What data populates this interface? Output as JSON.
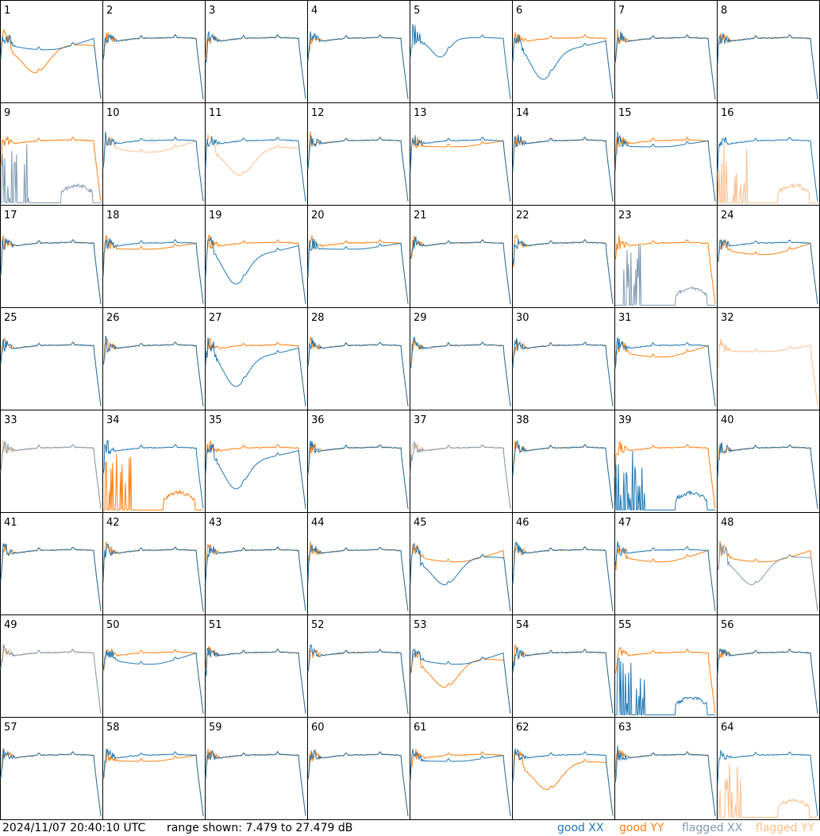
{
  "footer": {
    "timestamp": "2024/11/07 20:40:10 UTC",
    "range_text": "range shown: 7.479 to 27.479 dB"
  },
  "legend": [
    {
      "label": "good XX",
      "color": "#1f77b4"
    },
    {
      "label": "good YY",
      "color": "#ff7f0e"
    },
    {
      "label": "flagged XX",
      "color": "#7f9ab3"
    },
    {
      "label": "flagged YY",
      "color": "#ffbd8a"
    }
  ],
  "chart_data": {
    "type": "line",
    "title": "",
    "xlabel": "",
    "ylabel": "",
    "ylim": [
      7.479,
      27.479
    ],
    "grid": "8x8 small multiples",
    "panels": [
      {
        "id": "1",
        "xx": "good",
        "yy": "good",
        "xx_shape": "dip",
        "yy_shape": "deepdip"
      },
      {
        "id": "2",
        "xx": "good",
        "yy": "good",
        "xx_shape": "normal",
        "yy_shape": "normal"
      },
      {
        "id": "3",
        "xx": "good",
        "yy": "good",
        "xx_shape": "normal",
        "yy_shape": "normal"
      },
      {
        "id": "4",
        "xx": "good",
        "yy": "good",
        "xx_shape": "normal",
        "yy_shape": "normal"
      },
      {
        "id": "5",
        "xx": "good",
        "yy": "none",
        "xx_shape": "bowl",
        "yy_shape": "none"
      },
      {
        "id": "6",
        "xx": "good",
        "yy": "good",
        "xx_shape": "deepbowl",
        "yy_shape": "normal"
      },
      {
        "id": "7",
        "xx": "good",
        "yy": "good",
        "xx_shape": "normal",
        "yy_shape": "normal"
      },
      {
        "id": "8",
        "xx": "good",
        "yy": "good",
        "xx_shape": "normal",
        "yy_shape": "normal"
      },
      {
        "id": "9",
        "xx": "flagged",
        "yy": "good",
        "xx_shape": "spikes",
        "yy_shape": "normal"
      },
      {
        "id": "10",
        "xx": "good",
        "yy": "flagged",
        "xx_shape": "normal",
        "yy_shape": "dip"
      },
      {
        "id": "11",
        "xx": "good",
        "yy": "flagged",
        "xx_shape": "normal",
        "yy_shape": "deepdip"
      },
      {
        "id": "12",
        "xx": "good",
        "yy": "good",
        "xx_shape": "normal",
        "yy_shape": "normal"
      },
      {
        "id": "13",
        "xx": "good",
        "yy": "good",
        "xx_shape": "normal",
        "yy_shape": "low"
      },
      {
        "id": "14",
        "xx": "good",
        "yy": "good",
        "xx_shape": "normal",
        "yy_shape": "normal"
      },
      {
        "id": "15",
        "xx": "good",
        "yy": "good",
        "xx_shape": "low",
        "yy_shape": "normal"
      },
      {
        "id": "16",
        "xx": "good",
        "yy": "flagged",
        "xx_shape": "normal",
        "yy_shape": "spikes"
      },
      {
        "id": "17",
        "xx": "good",
        "yy": "good",
        "xx_shape": "normal",
        "yy_shape": "normal"
      },
      {
        "id": "18",
        "xx": "good",
        "yy": "good",
        "xx_shape": "normal",
        "yy_shape": "low"
      },
      {
        "id": "19",
        "xx": "good",
        "yy": "good",
        "xx_shape": "deepbowl",
        "yy_shape": "normal"
      },
      {
        "id": "20",
        "xx": "good",
        "yy": "good",
        "xx_shape": "low",
        "yy_shape": "normal"
      },
      {
        "id": "21",
        "xx": "good",
        "yy": "good",
        "xx_shape": "normal",
        "yy_shape": "normal"
      },
      {
        "id": "22",
        "xx": "good",
        "yy": "good",
        "xx_shape": "normal",
        "yy_shape": "normal"
      },
      {
        "id": "23",
        "xx": "flagged",
        "yy": "good",
        "xx_shape": "spikes",
        "yy_shape": "normal"
      },
      {
        "id": "24",
        "xx": "good",
        "yy": "good",
        "xx_shape": "normal",
        "yy_shape": "dip"
      },
      {
        "id": "25",
        "xx": "good",
        "yy": "good",
        "xx_shape": "normal",
        "yy_shape": "normal"
      },
      {
        "id": "26",
        "xx": "good",
        "yy": "good",
        "xx_shape": "normal",
        "yy_shape": "normal"
      },
      {
        "id": "27",
        "xx": "good",
        "yy": "good",
        "xx_shape": "deepbowl",
        "yy_shape": "normal"
      },
      {
        "id": "28",
        "xx": "good",
        "yy": "good",
        "xx_shape": "normal",
        "yy_shape": "normal"
      },
      {
        "id": "29",
        "xx": "good",
        "yy": "good",
        "xx_shape": "normal",
        "yy_shape": "normal"
      },
      {
        "id": "30",
        "xx": "good",
        "yy": "good",
        "xx_shape": "normal",
        "yy_shape": "normal"
      },
      {
        "id": "31",
        "xx": "good",
        "yy": "good",
        "xx_shape": "normal",
        "yy_shape": "dip"
      },
      {
        "id": "32",
        "xx": "none",
        "yy": "flagged",
        "xx_shape": "none",
        "yy_shape": "low"
      },
      {
        "id": "33",
        "xx": "flagged",
        "yy": "flagged",
        "xx_shape": "normal",
        "yy_shape": "normal"
      },
      {
        "id": "34",
        "xx": "good",
        "yy": "good",
        "xx_shape": "normal",
        "yy_shape": "spikes"
      },
      {
        "id": "35",
        "xx": "good",
        "yy": "good",
        "xx_shape": "deepbowl",
        "yy_shape": "normal"
      },
      {
        "id": "36",
        "xx": "good",
        "yy": "good",
        "xx_shape": "normal",
        "yy_shape": "normal"
      },
      {
        "id": "37",
        "xx": "flagged",
        "yy": "flagged",
        "xx_shape": "normal",
        "yy_shape": "normal"
      },
      {
        "id": "38",
        "xx": "good",
        "yy": "good",
        "xx_shape": "normal",
        "yy_shape": "normal"
      },
      {
        "id": "39",
        "xx": "good",
        "yy": "good",
        "xx_shape": "spikes",
        "yy_shape": "normal"
      },
      {
        "id": "40",
        "xx": "good",
        "yy": "good",
        "xx_shape": "normal",
        "yy_shape": "normal"
      },
      {
        "id": "41",
        "xx": "good",
        "yy": "good",
        "xx_shape": "normal",
        "yy_shape": "normal"
      },
      {
        "id": "42",
        "xx": "good",
        "yy": "good",
        "xx_shape": "normal",
        "yy_shape": "normal"
      },
      {
        "id": "43",
        "xx": "good",
        "yy": "good",
        "xx_shape": "normal",
        "yy_shape": "normal"
      },
      {
        "id": "44",
        "xx": "good",
        "yy": "good",
        "xx_shape": "normal",
        "yy_shape": "normal"
      },
      {
        "id": "45",
        "xx": "good",
        "yy": "good",
        "xx_shape": "deepdip",
        "yy_shape": "dip"
      },
      {
        "id": "46",
        "xx": "good",
        "yy": "good",
        "xx_shape": "normal",
        "yy_shape": "normal"
      },
      {
        "id": "47",
        "xx": "good",
        "yy": "good",
        "xx_shape": "normal",
        "yy_shape": "dip"
      },
      {
        "id": "48",
        "xx": "flagged",
        "yy": "good",
        "xx_shape": "deepdip",
        "yy_shape": "dip"
      },
      {
        "id": "49",
        "xx": "flagged",
        "yy": "flagged",
        "xx_shape": "normal",
        "yy_shape": "normal"
      },
      {
        "id": "50",
        "xx": "good",
        "yy": "good",
        "xx_shape": "dip",
        "yy_shape": "normal"
      },
      {
        "id": "51",
        "xx": "good",
        "yy": "good",
        "xx_shape": "normal",
        "yy_shape": "normal"
      },
      {
        "id": "52",
        "xx": "good",
        "yy": "good",
        "xx_shape": "normal",
        "yy_shape": "normal"
      },
      {
        "id": "53",
        "xx": "good",
        "yy": "good",
        "xx_shape": "dip",
        "yy_shape": "deepdip"
      },
      {
        "id": "54",
        "xx": "good",
        "yy": "good",
        "xx_shape": "normal",
        "yy_shape": "normal"
      },
      {
        "id": "55",
        "xx": "good",
        "yy": "good",
        "xx_shape": "spikes",
        "yy_shape": "normal"
      },
      {
        "id": "56",
        "xx": "good",
        "yy": "good",
        "xx_shape": "normal",
        "yy_shape": "normal"
      },
      {
        "id": "57",
        "xx": "good",
        "yy": "good",
        "xx_shape": "normal",
        "yy_shape": "normal"
      },
      {
        "id": "58",
        "xx": "good",
        "yy": "good",
        "xx_shape": "normal",
        "yy_shape": "low"
      },
      {
        "id": "59",
        "xx": "good",
        "yy": "good",
        "xx_shape": "normal",
        "yy_shape": "normal"
      },
      {
        "id": "60",
        "xx": "good",
        "yy": "good",
        "xx_shape": "normal",
        "yy_shape": "normal"
      },
      {
        "id": "61",
        "xx": "good",
        "yy": "good",
        "xx_shape": "low",
        "yy_shape": "normal"
      },
      {
        "id": "62",
        "xx": "good",
        "yy": "good",
        "xx_shape": "normal",
        "yy_shape": "deepdip"
      },
      {
        "id": "63",
        "xx": "good",
        "yy": "good",
        "xx_shape": "normal",
        "yy_shape": "normal"
      },
      {
        "id": "64",
        "xx": "good",
        "yy": "flagged",
        "xx_shape": "normal",
        "yy_shape": "spikes"
      }
    ]
  }
}
